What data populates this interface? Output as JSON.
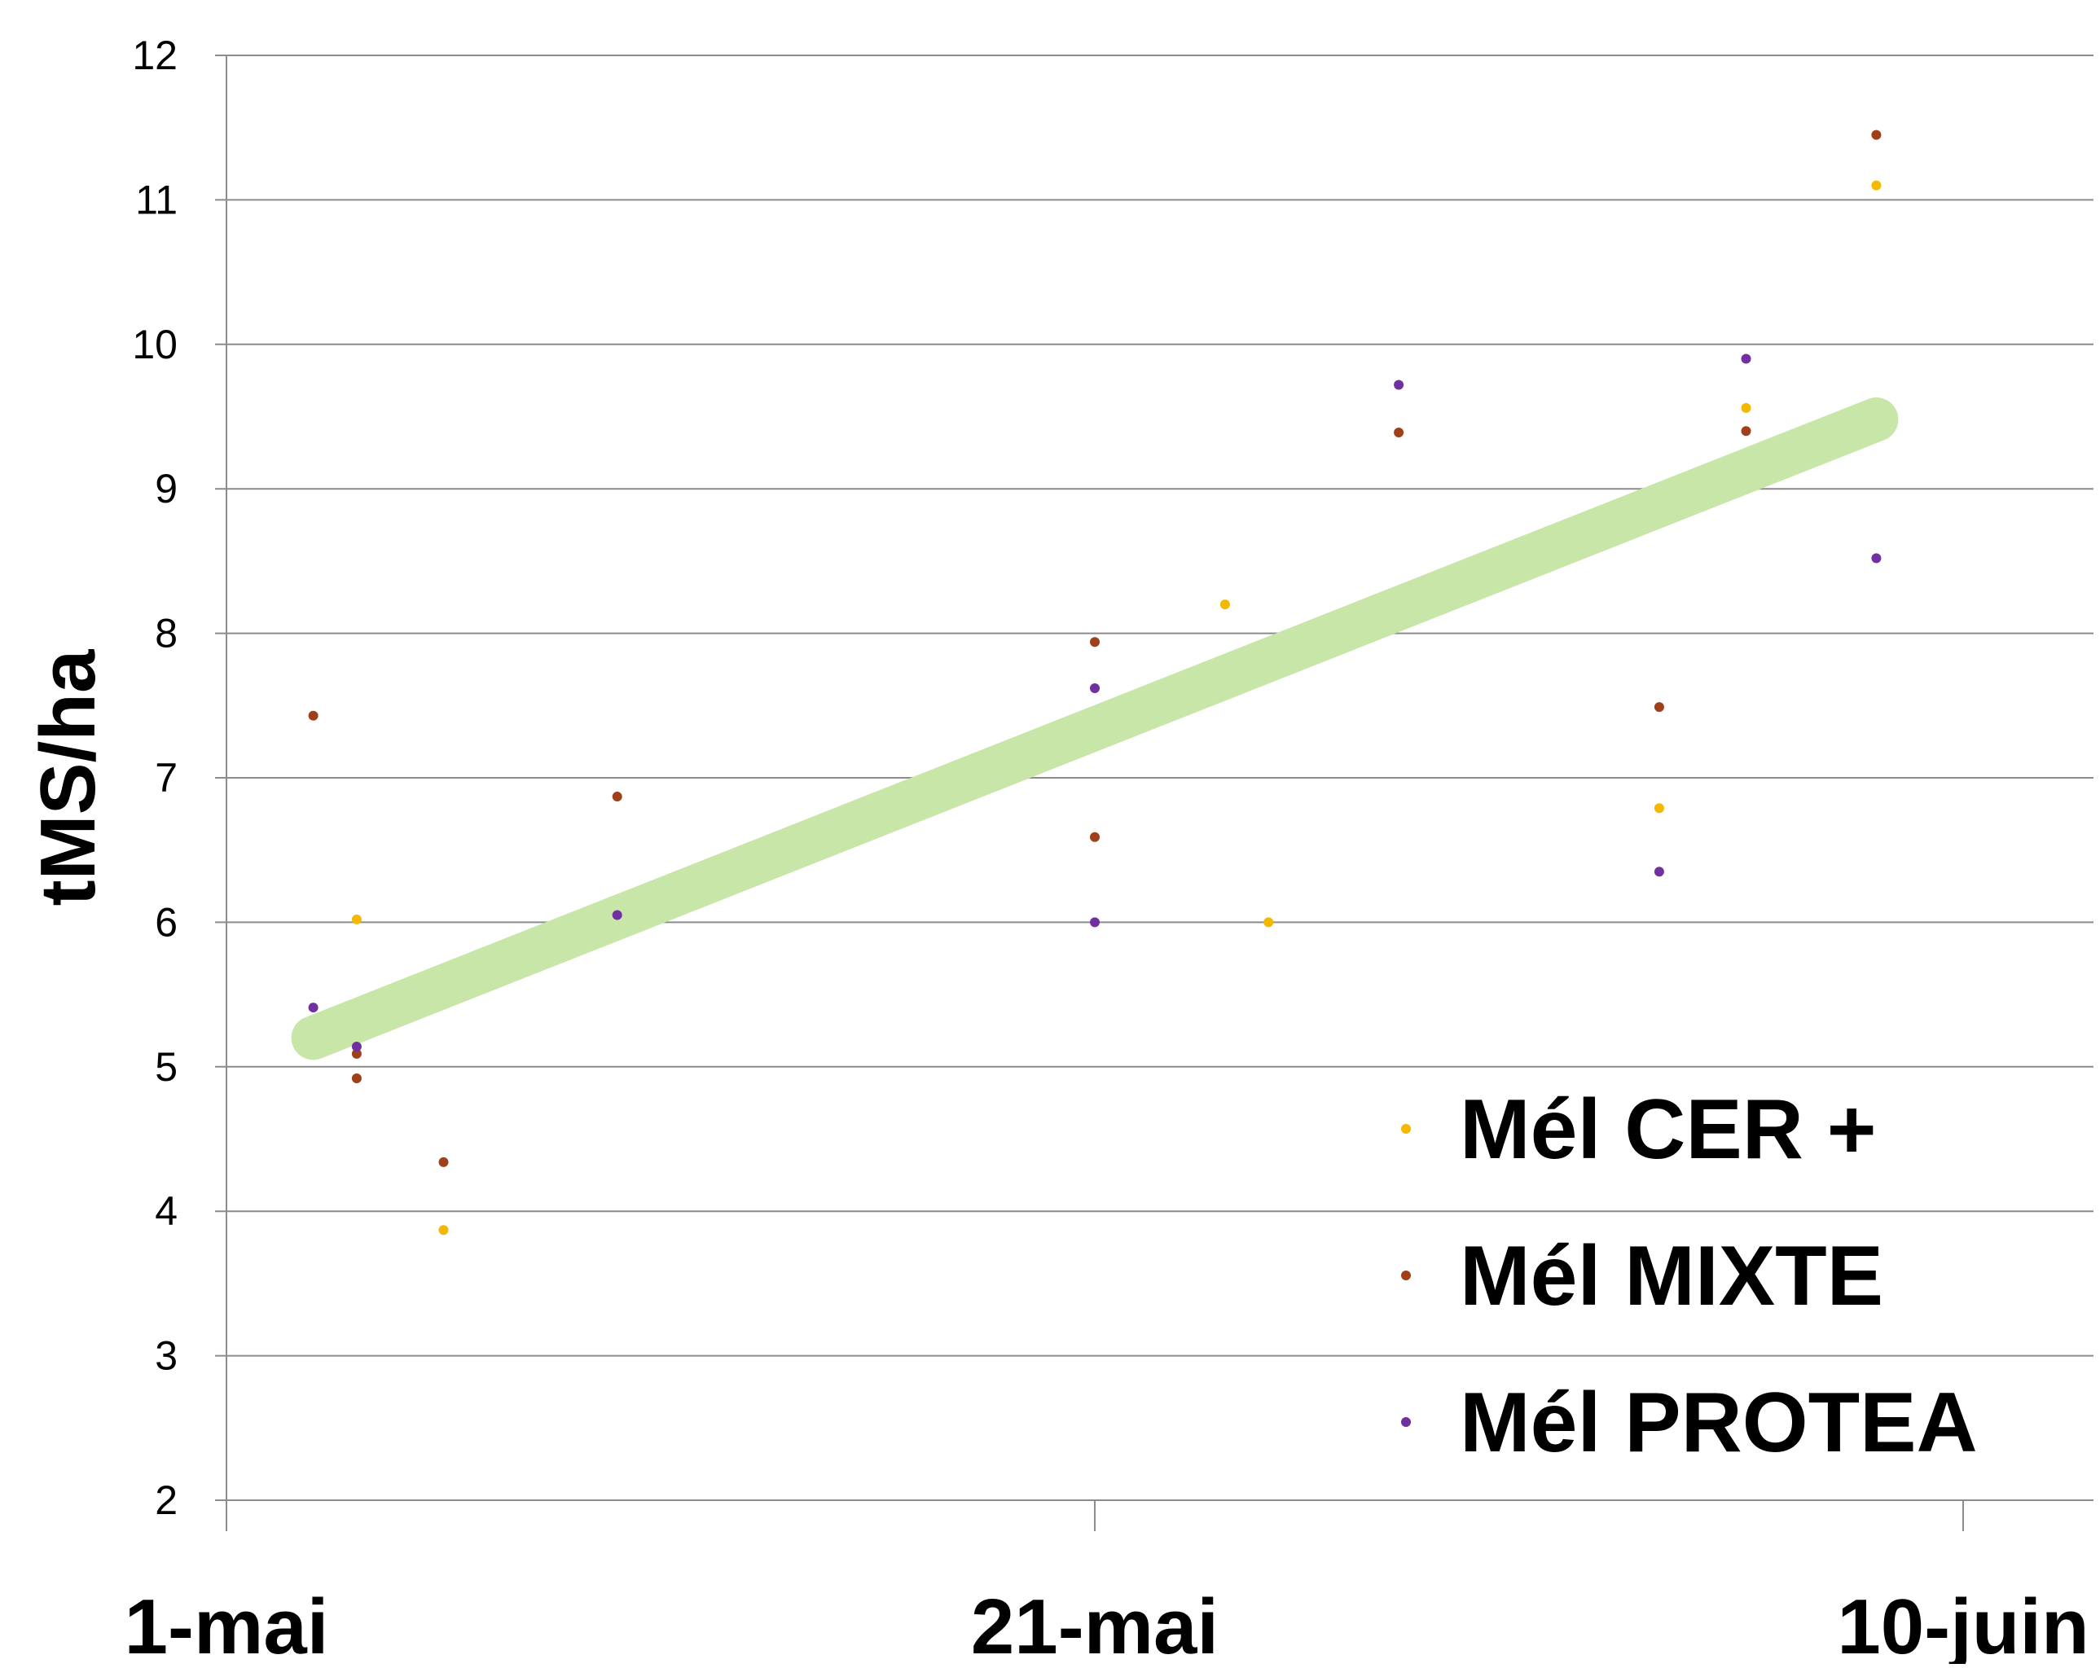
{
  "chart_data": {
    "type": "scatter",
    "title": "",
    "xlabel": "",
    "ylabel": "tMS/ha",
    "xlim": [
      "1-mai",
      "15-juin"
    ],
    "ylim": [
      2,
      12
    ],
    "y_ticks": [
      2,
      3,
      4,
      5,
      6,
      7,
      8,
      9,
      10,
      11,
      12
    ],
    "x_ticks": [
      "1-mai",
      "21-mai",
      "10-juin"
    ],
    "grid": "horizontal",
    "legend_position": "bottom-right",
    "series": [
      {
        "name": "Mél CER +",
        "color": "#f5b800",
        "points": [
          {
            "x": "4-mai",
            "y": 6.02
          },
          {
            "x": "6-mai",
            "y": 3.87
          },
          {
            "x": "24-mai",
            "y": 8.2
          },
          {
            "x": "25-mai",
            "y": 6.0
          },
          {
            "x": "3-juin",
            "y": 6.79
          },
          {
            "x": "5-juin",
            "y": 9.56
          },
          {
            "x": "8-juin",
            "y": 11.1
          }
        ]
      },
      {
        "name": "Mél MIXTE",
        "color": "#a0401b",
        "points": [
          {
            "x": "3-mai",
            "y": 7.43
          },
          {
            "x": "4-mai",
            "y": 5.09
          },
          {
            "x": "4-mai",
            "y": 4.92
          },
          {
            "x": "6-mai",
            "y": 4.34
          },
          {
            "x": "10-mai",
            "y": 6.87
          },
          {
            "x": "21-mai",
            "y": 7.94
          },
          {
            "x": "21-mai",
            "y": 6.59
          },
          {
            "x": "28-mai",
            "y": 9.39
          },
          {
            "x": "3-juin",
            "y": 7.49
          },
          {
            "x": "5-juin",
            "y": 9.4
          },
          {
            "x": "8-juin",
            "y": 11.45
          }
        ]
      },
      {
        "name": "Mél PROTEA",
        "color": "#7030a0",
        "points": [
          {
            "x": "3-mai",
            "y": 5.41
          },
          {
            "x": "4-mai",
            "y": 5.14
          },
          {
            "x": "10-mai",
            "y": 6.05
          },
          {
            "x": "21-mai",
            "y": 7.62
          },
          {
            "x": "21-mai",
            "y": 6.0
          },
          {
            "x": "28-mai",
            "y": 9.72
          },
          {
            "x": "3-juin",
            "y": 6.35
          },
          {
            "x": "5-juin",
            "y": 9.9
          },
          {
            "x": "8-juin",
            "y": 8.52
          }
        ]
      }
    ],
    "trendline": {
      "color": "#c8e6a8",
      "from": {
        "x": "3-mai",
        "y": 5.2
      },
      "to": {
        "x": "8-juin",
        "y": 9.48
      }
    }
  }
}
